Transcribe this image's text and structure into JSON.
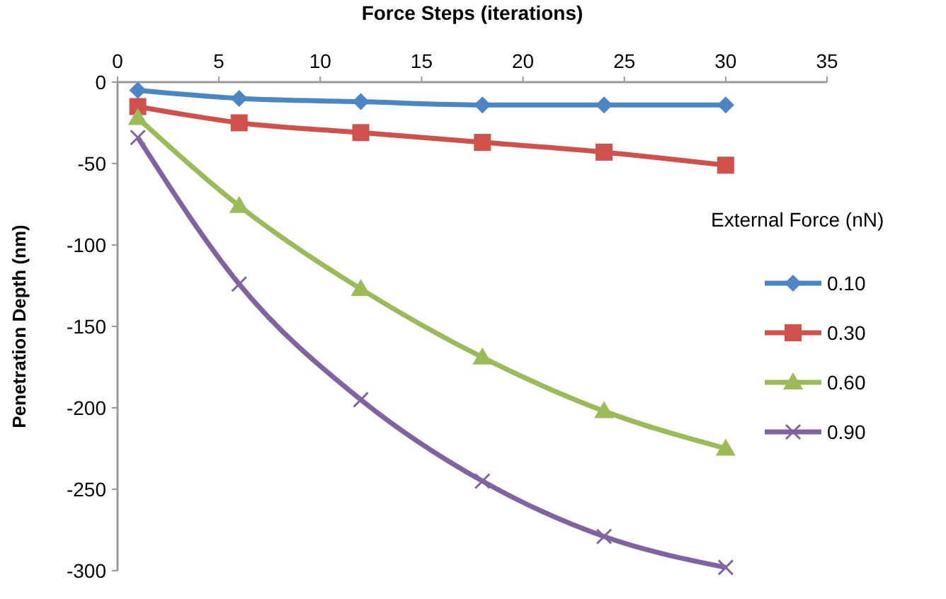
{
  "chart_data": {
    "type": "line",
    "xlabel": "Force Steps (iterations)",
    "ylabel": "Penetration Depth (nm)",
    "legend_title": "External Force (nN)",
    "x": [
      1,
      6,
      12,
      18,
      24,
      30
    ],
    "xlim": [
      0,
      35
    ],
    "xticks": [
      0,
      5,
      10,
      15,
      20,
      25,
      30,
      35
    ],
    "ylim": [
      -300,
      0
    ],
    "yticks": [
      -300,
      -250,
      -200,
      -150,
      -100,
      -50,
      0
    ],
    "grid": false,
    "legend": "right",
    "series": [
      {
        "name": "0.10",
        "color": "#4a86c5",
        "marker": "diamond",
        "values": [
          -5,
          -10,
          -12,
          -14,
          -14,
          -14
        ]
      },
      {
        "name": "0.30",
        "color": "#d0504b",
        "marker": "square",
        "values": [
          -15,
          -25,
          -31,
          -37,
          -43,
          -51
        ]
      },
      {
        "name": "0.60",
        "color": "#9bbb59",
        "marker": "triangle",
        "values": [
          -22,
          -76,
          -127,
          -169,
          -202,
          -225
        ]
      },
      {
        "name": "0.90",
        "color": "#8064a2",
        "marker": "cross",
        "values": [
          -34,
          -124,
          -195,
          -245,
          -279,
          -298
        ]
      }
    ]
  }
}
